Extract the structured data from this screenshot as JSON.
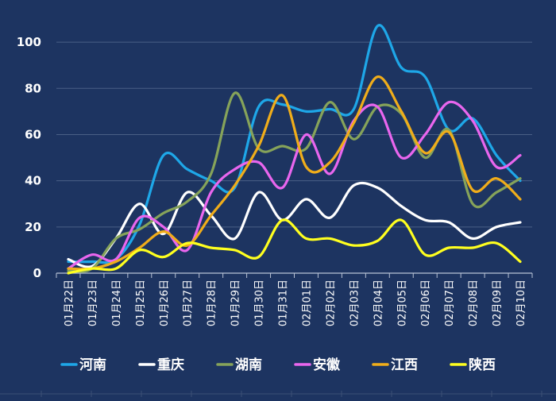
{
  "chart_data": {
    "type": "line",
    "title": "",
    "xlabel": "",
    "ylabel": "",
    "ylim": [
      0,
      110
    ],
    "yticks": [
      0,
      20,
      40,
      60,
      80,
      100
    ],
    "grid": "horizontal",
    "legend_position": "bottom",
    "categories": [
      "01月22日",
      "01月23日",
      "01月24日",
      "01月25日",
      "01月26日",
      "01月27日",
      "01月28日",
      "01月29日",
      "01月30日",
      "01月31日",
      "02月01日",
      "02月02日",
      "02月03日",
      "02月04日",
      "02月05日",
      "02月06日",
      "02月07日",
      "02月08日",
      "02月09日",
      "02月10日"
    ],
    "series": [
      {
        "name": "河南",
        "color": "#1ea7e8",
        "values": [
          5,
          5,
          6,
          21,
          51,
          45,
          40,
          37,
          72,
          73,
          70,
          71,
          71,
          107,
          89,
          85,
          62,
          67,
          51,
          40
        ]
      },
      {
        "name": "重庆",
        "color": "#ffffff",
        "values": [
          6,
          3,
          15,
          30,
          17,
          35,
          25,
          15,
          35,
          23,
          32,
          24,
          38,
          37,
          29,
          23,
          22,
          15,
          20,
          22
        ]
      },
      {
        "name": "湖南",
        "color": "#86a35a",
        "values": [
          1,
          2,
          15,
          19,
          26,
          31,
          43,
          78,
          54,
          55,
          54,
          74,
          58,
          72,
          69,
          50,
          62,
          30,
          35,
          41
        ]
      },
      {
        "name": "安徽",
        "color": "#e966ee",
        "values": [
          2,
          8,
          6,
          24,
          20,
          10,
          35,
          45,
          48,
          37,
          60,
          43,
          66,
          72,
          50,
          60,
          74,
          66,
          46,
          51
        ]
      },
      {
        "name": "江西",
        "color": "#f0ad1a",
        "values": [
          2,
          2,
          5,
          11,
          18,
          12,
          25,
          38,
          55,
          77,
          46,
          48,
          65,
          85,
          70,
          52,
          61,
          36,
          41,
          32
        ]
      },
      {
        "name": "陕西",
        "color": "#ffff1f",
        "values": [
          0,
          2,
          2,
          10,
          7,
          13,
          11,
          10,
          7,
          23,
          15,
          15,
          12,
          14,
          23,
          8,
          11,
          11,
          13,
          5
        ]
      }
    ]
  }
}
